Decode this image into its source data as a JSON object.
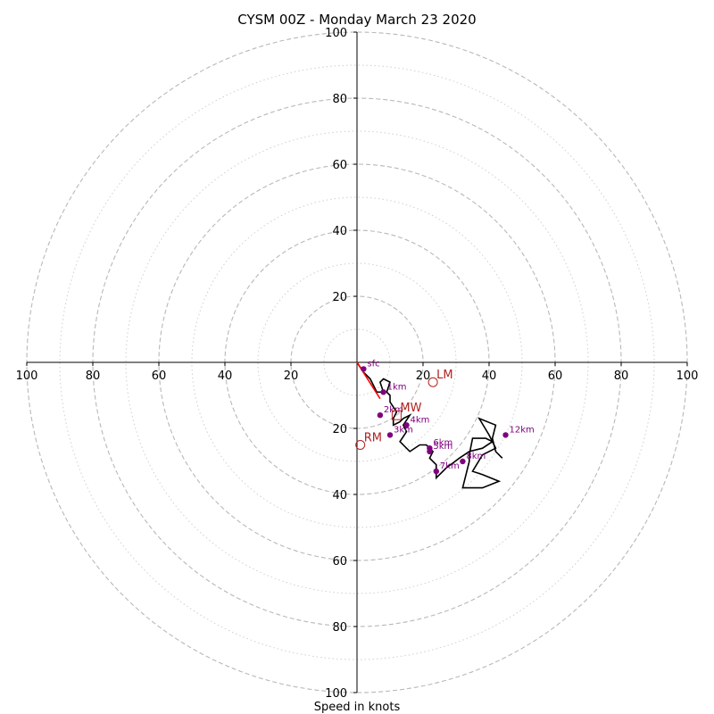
{
  "chart_data": {
    "type": "hodograph",
    "title": "CYSM 00Z - Monday March 23 2020",
    "xlabel": "Speed in knots",
    "range": [
      -100,
      100
    ],
    "axis_tick_values": [
      20,
      40,
      60,
      80,
      100
    ],
    "x_tick_labels": [
      "100",
      "80",
      "60",
      "40",
      "20",
      "20",
      "40",
      "60",
      "80",
      "100"
    ],
    "y_tick_labels": [
      "100",
      "80",
      "60",
      "40",
      "20",
      "20",
      "40",
      "60",
      "80",
      "100"
    ],
    "rings_major": [
      20,
      40,
      60,
      80,
      100
    ],
    "rings_minor": [
      10,
      30,
      50,
      70,
      90
    ],
    "hodograph_line": {
      "color": "#000000",
      "points": [
        [
          0,
          0
        ],
        [
          2,
          -3
        ],
        [
          4,
          -5
        ],
        [
          5,
          -7
        ],
        [
          6,
          -9
        ],
        [
          8,
          -9
        ],
        [
          7,
          -6
        ],
        [
          8,
          -5
        ],
        [
          10,
          -6
        ],
        [
          9,
          -9
        ],
        [
          10,
          -10
        ],
        [
          10,
          -12
        ],
        [
          12,
          -15
        ],
        [
          11,
          -17
        ],
        [
          11,
          -19
        ],
        [
          13,
          -18
        ],
        [
          14,
          -17
        ],
        [
          16,
          -16
        ],
        [
          14,
          -19
        ],
        [
          15,
          -21
        ],
        [
          13,
          -24
        ],
        [
          16,
          -27
        ],
        [
          19,
          -25
        ],
        [
          21,
          -25
        ],
        [
          23,
          -27
        ],
        [
          22,
          -29
        ],
        [
          24,
          -31
        ],
        [
          24,
          -35
        ],
        [
          27,
          -32
        ],
        [
          31,
          -29
        ],
        [
          34,
          -27
        ],
        [
          38,
          -26
        ],
        [
          41,
          -24
        ],
        [
          39,
          -23
        ],
        [
          35,
          -23
        ],
        [
          34,
          -28
        ],
        [
          34,
          -30
        ],
        [
          33,
          -34
        ],
        [
          32,
          -38
        ],
        [
          38,
          -38
        ],
        [
          43,
          -36
        ],
        [
          38,
          -34
        ],
        [
          35,
          -33
        ],
        [
          38,
          -28
        ],
        [
          42,
          -26
        ],
        [
          40,
          -22
        ],
        [
          37,
          -17
        ],
        [
          42,
          -19
        ],
        [
          41,
          -23
        ],
        [
          42,
          -27
        ],
        [
          44,
          -29
        ]
      ]
    },
    "red_segment": {
      "color": "#ff0000",
      "points": [
        [
          0,
          0
        ],
        [
          7,
          -11
        ]
      ]
    },
    "height_markers": {
      "color": "#800080",
      "points": [
        {
          "label": "sfc",
          "u": 2,
          "v": -2
        },
        {
          "label": "1km",
          "u": 8,
          "v": -9
        },
        {
          "label": "2km",
          "u": 7,
          "v": -16
        },
        {
          "label": "3km",
          "u": 10,
          "v": -22
        },
        {
          "label": "4km",
          "u": 15,
          "v": -19
        },
        {
          "label": "5km",
          "u": 22,
          "v": -27
        },
        {
          "label": "6km",
          "u": 22,
          "v": -26
        },
        {
          "label": "7km",
          "u": 24,
          "v": -33
        },
        {
          "label": "8km",
          "u": 32,
          "v": -30
        },
        {
          "label": "12km",
          "u": 45,
          "v": -22
        }
      ]
    },
    "storm_motions": {
      "color": "#b22222",
      "points": [
        {
          "label": "LM",
          "u": 23,
          "v": -6,
          "marker": "circle"
        },
        {
          "label": "MW",
          "u": 12,
          "v": -16,
          "marker": "square"
        },
        {
          "label": "RM",
          "u": 1,
          "v": -25,
          "marker": "circle"
        }
      ]
    },
    "grid": true,
    "legend": "none"
  }
}
